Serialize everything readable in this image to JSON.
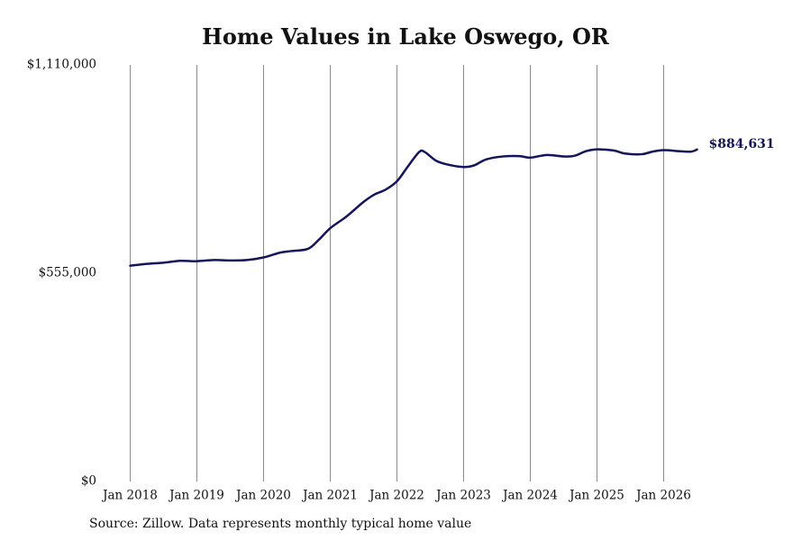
{
  "chart_data": {
    "type": "line",
    "title": "Home Values in Lake Oswego, OR",
    "source_note": "Source: Zillow. Data represents monthly typical home value",
    "xlabel": "",
    "ylabel": "",
    "grid": "vertical",
    "ylim": [
      0,
      1110000
    ],
    "y_ticks": [
      0,
      555000,
      1110000
    ],
    "y_tick_labels": [
      "$0",
      "$555,000",
      "$1,110,000"
    ],
    "x_ticks": [
      "2018-01",
      "2019-01",
      "2020-01",
      "2021-01",
      "2022-01",
      "2023-01",
      "2024-01",
      "2025-01",
      "2026-01"
    ],
    "x_tick_labels": [
      "Jan 2018",
      "Jan 2019",
      "Jan 2020",
      "Jan 2021",
      "Jan 2022",
      "Jan 2023",
      "Jan 2024",
      "Jan 2025",
      "Jan 2026"
    ],
    "end_label": "$884,631",
    "series": [
      {
        "color": "#14145a",
        "points": [
          [
            "2018-01",
            575000
          ],
          [
            "2018-04",
            580000
          ],
          [
            "2018-07",
            583000
          ],
          [
            "2018-10",
            588000
          ],
          [
            "2019-01",
            587000
          ],
          [
            "2019-04",
            590000
          ],
          [
            "2019-07",
            589000
          ],
          [
            "2019-10",
            590000
          ],
          [
            "2020-01",
            597000
          ],
          [
            "2020-04",
            610000
          ],
          [
            "2020-06",
            614000
          ],
          [
            "2020-09",
            620000
          ],
          [
            "2020-11",
            645000
          ],
          [
            "2021-01",
            675000
          ],
          [
            "2021-04",
            707000
          ],
          [
            "2021-07",
            745000
          ],
          [
            "2021-09",
            765000
          ],
          [
            "2021-11",
            778000
          ],
          [
            "2022-01",
            800000
          ],
          [
            "2022-03",
            840000
          ],
          [
            "2022-05",
            878000
          ],
          [
            "2022-06",
            878000
          ],
          [
            "2022-08",
            855000
          ],
          [
            "2022-10",
            845000
          ],
          [
            "2023-01",
            838000
          ],
          [
            "2023-03",
            843000
          ],
          [
            "2023-05",
            858000
          ],
          [
            "2023-08",
            866000
          ],
          [
            "2023-11",
            867000
          ],
          [
            "2024-01",
            863000
          ],
          [
            "2024-04",
            870000
          ],
          [
            "2024-07",
            866000
          ],
          [
            "2024-09",
            868000
          ],
          [
            "2024-11",
            880000
          ],
          [
            "2025-01",
            885000
          ],
          [
            "2025-04",
            882000
          ],
          [
            "2025-06",
            874000
          ],
          [
            "2025-09",
            872000
          ],
          [
            "2025-11",
            879000
          ],
          [
            "2026-01",
            883000
          ],
          [
            "2026-04",
            880000
          ],
          [
            "2026-06",
            879000
          ],
          [
            "2026-07",
            884631
          ]
        ]
      }
    ]
  }
}
